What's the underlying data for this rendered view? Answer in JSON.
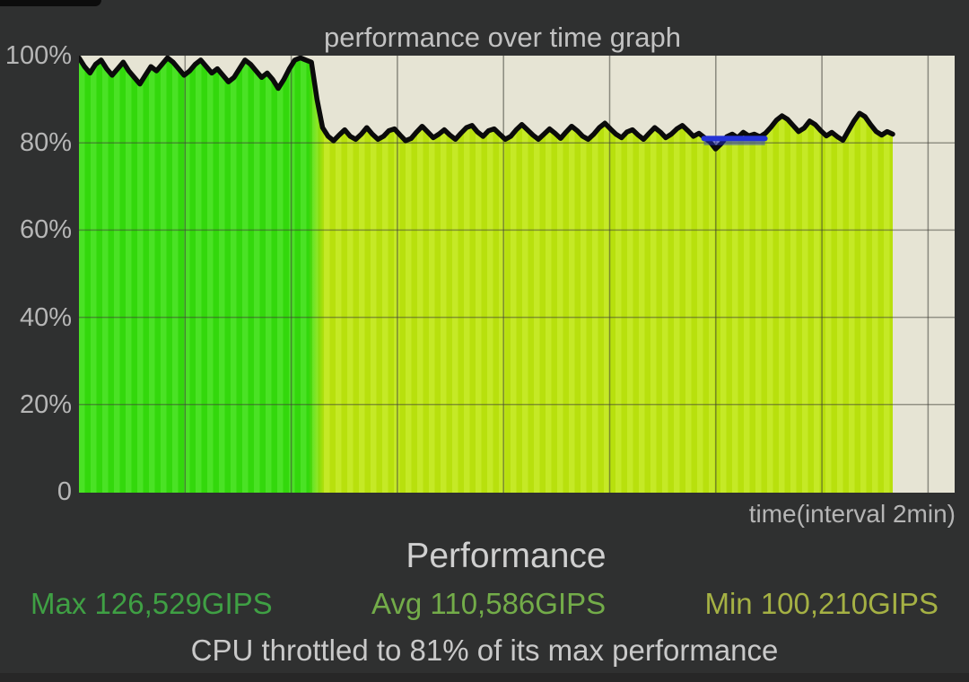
{
  "screen": {
    "background_color": "#2F3030",
    "bottom_bar_color": "#272727"
  },
  "chart_data": {
    "type": "area",
    "title": "performance over time graph",
    "xlabel": "time(interval 2min)",
    "ylabel": "",
    "ylim": [
      0,
      100
    ],
    "grid": true,
    "x_interval_minutes": 2,
    "y_ticks": [
      {
        "label": "100%",
        "value": 100
      },
      {
        "label": "80%",
        "value": 80
      },
      {
        "label": "60%",
        "value": 60
      },
      {
        "label": "40%",
        "value": 40
      },
      {
        "label": "20%",
        "value": 20
      },
      {
        "label": "0",
        "value": 0
      }
    ],
    "plot_background": "#E6E4D4",
    "line_color": "#0B0B0B",
    "marker_color": "#2533D6",
    "grid_color": "#3E3E36",
    "area_full_speed_color": "#35DF0C",
    "area_throttled_color": "#BEE70D",
    "throttle_transition_frac": 0.29,
    "v_grid_count": 8,
    "performance_percent": [
      99.5,
      97.5,
      96,
      98,
      99,
      97,
      95.5,
      97,
      98.5,
      96.5,
      95,
      93.5,
      95.5,
      97.5,
      96.5,
      98,
      99.5,
      98.5,
      97,
      95.5,
      96.5,
      98,
      99,
      97.5,
      96,
      97,
      95.5,
      94,
      95,
      97,
      99,
      98,
      96.5,
      95,
      96,
      94.5,
      92.5,
      94.5,
      97,
      99,
      99.5,
      99,
      98.5,
      90,
      83.5,
      81.5,
      80.5,
      81.8,
      83,
      81.5,
      80.8,
      82,
      83.5,
      82,
      80.8,
      81.5,
      82.8,
      83.2,
      81.8,
      80.5,
      81,
      82.5,
      83.8,
      82.5,
      81.2,
      82,
      83,
      81.8,
      80.8,
      82.2,
      83.5,
      84,
      82.5,
      81.5,
      82.8,
      83.2,
      82,
      80.8,
      81.5,
      83,
      84.2,
      83,
      81.8,
      80.8,
      82,
      83.2,
      82.2,
      81,
      82.5,
      83.8,
      82.8,
      81.5,
      80.8,
      82,
      83.5,
      84.5,
      83.2,
      82,
      81.2,
      82.5,
      83,
      81.8,
      80.8,
      82.2,
      83.5,
      82.5,
      81.2,
      82,
      83.2,
      84,
      82.8,
      81.5,
      82.2,
      81.2,
      80.2,
      78.6,
      79.8,
      81.4,
      82,
      81.2,
      82.4,
      81.6,
      82,
      81.4,
      82.2,
      83.6,
      85.2,
      86.2,
      85.4,
      84,
      82.6,
      83.4,
      85,
      84.2,
      82.8,
      81.6,
      82.4,
      81.4,
      80.6,
      82.8,
      85,
      86.8,
      86,
      84.2,
      82.6,
      81.8,
      82.6,
      82
    ],
    "current_marker": {
      "value": 81,
      "start_frac": 0.768,
      "end_frac": 0.843
    }
  },
  "stats": {
    "heading": "Performance",
    "items": [
      {
        "name": "max",
        "text": "Max 126,529GIPS",
        "color": "#3FA044"
      },
      {
        "name": "avg",
        "text": "Avg 110,586GIPS",
        "color": "#73AC49"
      },
      {
        "name": "min",
        "text": "Min 100,210GIPS",
        "color": "#A5B144"
      }
    ],
    "throttle_text": "CPU throttled to 81% of its max performance"
  }
}
